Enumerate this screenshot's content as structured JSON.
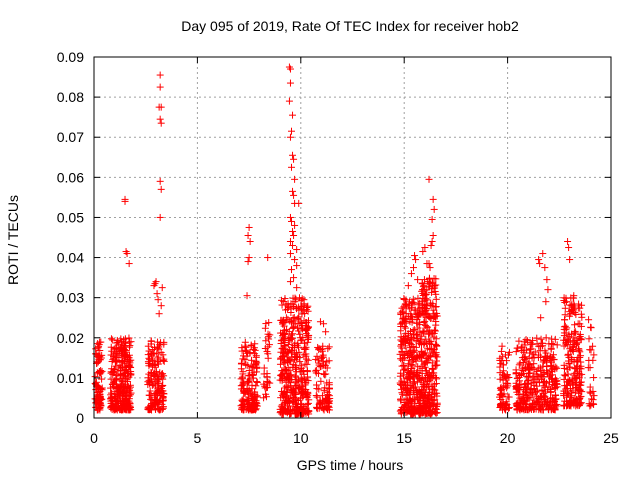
{
  "chart_data": {
    "type": "scatter",
    "title": "Day 095 of 2019, Rate Of TEC Index for receiver hob2",
    "xlabel": "GPS time / hours",
    "ylabel": "ROTI / TECUs",
    "xlim": [
      0,
      25
    ],
    "ylim": [
      0,
      0.09
    ],
    "xticks": [
      "0",
      "5",
      "10",
      "15",
      "20",
      "25"
    ],
    "yticks": [
      "0",
      "0.01",
      "0.02",
      "0.03",
      "0.04",
      "0.05",
      "0.06",
      "0.07",
      "0.08",
      "0.09"
    ],
    "grid": true,
    "marker": "plus",
    "color": "#ff0000",
    "clusters": [
      {
        "x": [
          0.05,
          0.4
        ],
        "y_min": 0.002,
        "y_max": 0.019,
        "n": 90
      },
      {
        "x": [
          0.8,
          1.8
        ],
        "y_min": 0.002,
        "y_max": 0.02,
        "n": 300
      },
      {
        "x": [
          2.6,
          3.4
        ],
        "y_min": 0.002,
        "y_max": 0.02,
        "n": 160
      },
      {
        "x": [
          7.1,
          7.9
        ],
        "y_min": 0.002,
        "y_max": 0.019,
        "n": 160
      },
      {
        "x": [
          8.2,
          8.5
        ],
        "y_min": 0.005,
        "y_max": 0.027,
        "n": 30
      },
      {
        "x": [
          9.0,
          10.4
        ],
        "y_min": 0.001,
        "y_max": 0.03,
        "n": 420
      },
      {
        "x": [
          10.7,
          11.4
        ],
        "y_min": 0.002,
        "y_max": 0.018,
        "n": 90
      },
      {
        "x": [
          14.8,
          15.8
        ],
        "y_min": 0.001,
        "y_max": 0.03,
        "n": 320
      },
      {
        "x": [
          15.8,
          16.6
        ],
        "y_min": 0.001,
        "y_max": 0.035,
        "n": 300
      },
      {
        "x": [
          19.6,
          20.1
        ],
        "y_min": 0.002,
        "y_max": 0.018,
        "n": 70
      },
      {
        "x": [
          20.4,
          22.4
        ],
        "y_min": 0.002,
        "y_max": 0.02,
        "n": 360
      },
      {
        "x": [
          22.7,
          23.6
        ],
        "y_min": 0.003,
        "y_max": 0.03,
        "n": 220
      },
      {
        "x": [
          23.9,
          24.2
        ],
        "y_min": 0.003,
        "y_max": 0.025,
        "n": 25
      }
    ],
    "points": [
      [
        1.5,
        0.0545
      ],
      [
        1.5,
        0.054
      ],
      [
        1.55,
        0.0415
      ],
      [
        1.6,
        0.041
      ],
      [
        1.7,
        0.0385
      ],
      [
        2.9,
        0.033
      ],
      [
        2.95,
        0.0335
      ],
      [
        3.0,
        0.034
      ],
      [
        3.05,
        0.031
      ],
      [
        3.1,
        0.0295
      ],
      [
        3.15,
        0.026
      ],
      [
        3.2,
        0.0855
      ],
      [
        3.2,
        0.0825
      ],
      [
        3.15,
        0.0775
      ],
      [
        3.25,
        0.0775
      ],
      [
        3.2,
        0.0745
      ],
      [
        3.25,
        0.0735
      ],
      [
        3.2,
        0.059
      ],
      [
        3.25,
        0.057
      ],
      [
        3.2,
        0.05
      ],
      [
        3.3,
        0.0325
      ],
      [
        3.25,
        0.028
      ],
      [
        7.4,
        0.0305
      ],
      [
        7.5,
        0.0475
      ],
      [
        7.45,
        0.0455
      ],
      [
        7.55,
        0.044
      ],
      [
        7.5,
        0.04
      ],
      [
        7.45,
        0.039
      ],
      [
        8.4,
        0.04
      ],
      [
        9.45,
        0.0875
      ],
      [
        9.5,
        0.087
      ],
      [
        9.5,
        0.0835
      ],
      [
        9.45,
        0.079
      ],
      [
        9.6,
        0.0755
      ],
      [
        9.55,
        0.0715
      ],
      [
        9.5,
        0.07
      ],
      [
        9.6,
        0.0655
      ],
      [
        9.65,
        0.0645
      ],
      [
        9.55,
        0.0625
      ],
      [
        9.7,
        0.0595
      ],
      [
        9.6,
        0.0565
      ],
      [
        9.65,
        0.0555
      ],
      [
        9.7,
        0.0535
      ],
      [
        9.9,
        0.0535
      ],
      [
        9.5,
        0.05
      ],
      [
        9.55,
        0.049
      ],
      [
        9.7,
        0.048
      ],
      [
        9.6,
        0.0465
      ],
      [
        9.65,
        0.0455
      ],
      [
        9.5,
        0.044
      ],
      [
        9.6,
        0.043
      ],
      [
        9.8,
        0.042
      ],
      [
        9.5,
        0.041
      ],
      [
        9.7,
        0.0395
      ],
      [
        9.8,
        0.038
      ],
      [
        9.55,
        0.037
      ],
      [
        9.65,
        0.035
      ],
      [
        9.5,
        0.034
      ],
      [
        9.8,
        0.0325
      ],
      [
        11.1,
        0.0235
      ],
      [
        11.2,
        0.0215
      ],
      [
        10.95,
        0.024
      ],
      [
        15.2,
        0.033
      ],
      [
        15.35,
        0.036
      ],
      [
        15.45,
        0.0375
      ],
      [
        15.55,
        0.0395
      ],
      [
        15.5,
        0.0405
      ],
      [
        15.65,
        0.0345
      ],
      [
        15.9,
        0.0415
      ],
      [
        16.0,
        0.0425
      ],
      [
        16.1,
        0.0385
      ],
      [
        16.2,
        0.0385
      ],
      [
        16.3,
        0.043
      ],
      [
        16.35,
        0.044
      ],
      [
        16.4,
        0.0455
      ],
      [
        16.4,
        0.0545
      ],
      [
        16.45,
        0.052
      ],
      [
        16.35,
        0.0495
      ],
      [
        16.2,
        0.0595
      ],
      [
        16.25,
        0.0375
      ],
      [
        21.5,
        0.0395
      ],
      [
        21.55,
        0.0385
      ],
      [
        21.7,
        0.041
      ],
      [
        21.8,
        0.0375
      ],
      [
        21.9,
        0.0345
      ],
      [
        21.95,
        0.032
      ],
      [
        21.85,
        0.029
      ],
      [
        21.6,
        0.025
      ],
      [
        22.9,
        0.044
      ],
      [
        22.95,
        0.0425
      ],
      [
        23.0,
        0.0395
      ],
      [
        22.85,
        0.029
      ],
      [
        23.1,
        0.028
      ],
      [
        23.2,
        0.0305
      ],
      [
        23.0,
        0.0265
      ]
    ]
  }
}
